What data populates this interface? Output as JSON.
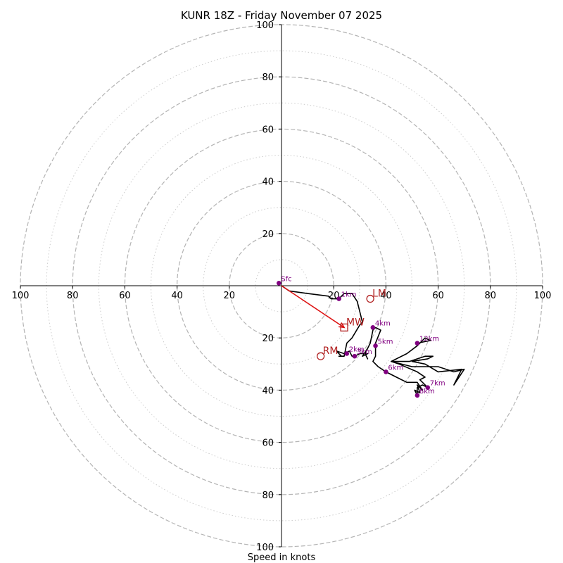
{
  "chart_data": {
    "type": "hodograph",
    "title": "KUNR 18Z - Friday November 07 2025",
    "xlabel": "Speed in knots",
    "ylabel": "",
    "xlim": [
      -100,
      100
    ],
    "ylim": [
      -100,
      100
    ],
    "grid": "polar rings",
    "major_rings": [
      20,
      40,
      60,
      80,
      100
    ],
    "minor_rings": [
      10,
      30,
      50,
      70,
      90
    ],
    "tick_values": [
      20,
      40,
      60,
      80,
      100
    ],
    "x_tick_labels": [
      "100",
      "80",
      "60",
      "40",
      "20",
      "20",
      "40",
      "60",
      "80",
      "100"
    ],
    "y_tick_labels": [
      "100",
      "80",
      "60",
      "40",
      "20",
      "20",
      "40",
      "60",
      "80",
      "100"
    ],
    "colors": {
      "trace": "#000000",
      "height_marker": "#800080",
      "motion": "#b22222",
      "mean_wind_arrow": "#dd1111",
      "major_grid": "#b4b4b4",
      "minor_grid": "#cccccc"
    },
    "trace_points": [
      [
        0,
        0
      ],
      [
        3,
        -2
      ],
      [
        10,
        -3
      ],
      [
        18,
        -4
      ],
      [
        19,
        -5
      ],
      [
        22,
        -5
      ],
      [
        24,
        -3
      ],
      [
        27,
        -3
      ],
      [
        29,
        -6
      ],
      [
        30,
        -10
      ],
      [
        31,
        -14
      ],
      [
        30,
        -15
      ],
      [
        27,
        -20
      ],
      [
        25,
        -22
      ],
      [
        24,
        -27
      ],
      [
        22,
        -27
      ],
      [
        23,
        -27
      ],
      [
        21,
        -25
      ],
      [
        24,
        -26
      ],
      [
        26,
        -25
      ],
      [
        27,
        -27
      ],
      [
        28,
        -27
      ],
      [
        30,
        -26
      ],
      [
        33,
        -26
      ],
      [
        31,
        -27
      ],
      [
        33,
        -24
      ],
      [
        32,
        -26
      ],
      [
        33,
        -28
      ],
      [
        32,
        -26
      ],
      [
        34,
        -22
      ],
      [
        35,
        -17
      ],
      [
        36,
        -16
      ],
      [
        38,
        -17
      ],
      [
        36,
        -22
      ],
      [
        36,
        -27
      ],
      [
        35,
        -29
      ],
      [
        37,
        -31
      ],
      [
        40,
        -33
      ],
      [
        44,
        -35
      ],
      [
        48,
        -37
      ],
      [
        52,
        -37
      ],
      [
        54,
        -40
      ],
      [
        52,
        -38
      ],
      [
        53,
        -41
      ],
      [
        51,
        -40
      ],
      [
        52,
        -42
      ],
      [
        52,
        -39
      ],
      [
        54,
        -38
      ],
      [
        56,
        -39
      ],
      [
        53,
        -36
      ],
      [
        55,
        -35
      ],
      [
        52,
        -33
      ],
      [
        45,
        -30
      ],
      [
        42,
        -29
      ],
      [
        50,
        -31
      ],
      [
        60,
        -31
      ],
      [
        66,
        -33
      ],
      [
        70,
        -32
      ],
      [
        66,
        -38
      ],
      [
        69,
        -32
      ],
      [
        60,
        -33
      ],
      [
        55,
        -30
      ],
      [
        50,
        -29
      ],
      [
        56,
        -28
      ],
      [
        58,
        -27
      ],
      [
        55,
        -27
      ],
      [
        49,
        -29
      ],
      [
        42,
        -29
      ],
      [
        48,
        -26
      ],
      [
        52,
        -23
      ],
      [
        55,
        -20
      ],
      [
        57,
        -21
      ],
      [
        52,
        -22
      ]
    ],
    "height_markers": [
      {
        "label": "Sfc",
        "u": -1,
        "v": 1
      },
      {
        "label": "1km",
        "u": 22,
        "v": -5
      },
      {
        "label": "2km",
        "u": 25,
        "v": -26
      },
      {
        "label": "3km",
        "u": 28,
        "v": -27
      },
      {
        "label": "4km",
        "u": 35,
        "v": -16
      },
      {
        "label": "5km",
        "u": 36,
        "v": -23
      },
      {
        "label": "6km",
        "u": 40,
        "v": -33
      },
      {
        "label": "7km",
        "u": 56,
        "v": -39
      },
      {
        "label": "8km",
        "u": 52,
        "v": -42
      },
      {
        "label": "12km",
        "u": 52,
        "v": -22
      }
    ],
    "storm_motion": [
      {
        "label": "LM",
        "u": 34,
        "v": -5,
        "marker": "circle"
      },
      {
        "label": "MW",
        "u": 24,
        "v": -16,
        "marker": "square"
      },
      {
        "label": "RM",
        "u": 15,
        "v": -27,
        "marker": "circle"
      }
    ],
    "mean_wind_arrow": {
      "from": [
        0,
        0
      ],
      "to": [
        24,
        -16
      ]
    }
  }
}
